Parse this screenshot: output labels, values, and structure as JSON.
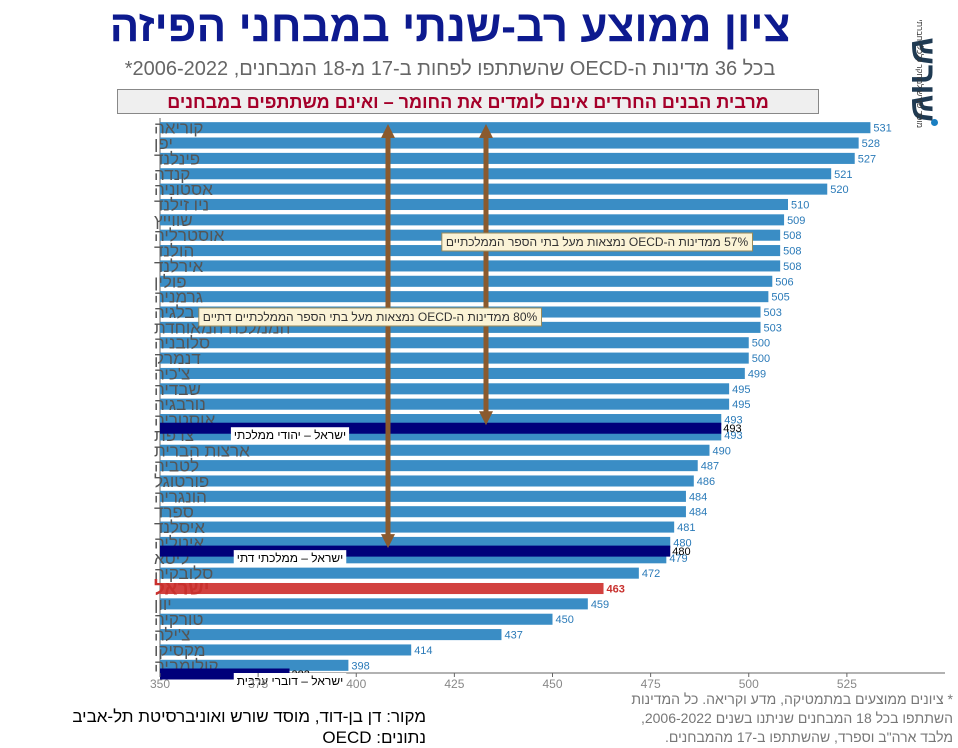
{
  "header": {
    "title": "ציון ממוצע רב-שנתי במבחני הפיזה",
    "subtitle": "בכל 36 מדינות ה-OECD שהשתתפו לפחות ב-17 מ-18 המבחנים, 2006-2022*",
    "banner": "מרבית הבנים החרדים אינם לומדים את החומר – ואינם משתתפים במבחנים"
  },
  "logo": {
    "name": "שורש",
    "tagline": "מוסד שורש למחקר כלכלי-חברתי",
    "dot_color": "#1a7fc1"
  },
  "footer": {
    "footnote": "* ציונים ממוצעים במתמטיקה, מדע וקריאה. כל המדינות השתתפו בכל 18 המבחנים שניתנו בשנים 2006-2022, מלבד ארה\"ב וספרד, שהשתתפו ב-17 מהמבחנים.",
    "source": "מקור: דן בן-דוד, מוסד שורש ואוניברסיטת תל-אביב",
    "data": "נתונים: OECD"
  },
  "colors": {
    "bar": "#3a8dc5",
    "israel_bar": "#d2413f",
    "israel_label": "#c8302d",
    "subgroup_bar": "#00007a",
    "arrow": "#8a5a2e",
    "value_text": "#2a7ab8",
    "axis_text": "#888888"
  },
  "chart_data": {
    "type": "bar",
    "orientation": "horizontal",
    "xlim": [
      350,
      550
    ],
    "xticks": [
      350,
      375,
      400,
      425,
      450,
      475,
      500,
      525
    ],
    "categories": [
      "קוריאה",
      "יפן",
      "פינלנד",
      "קנדה",
      "אסטוניה",
      "ניו זילנד",
      "שווייץ",
      "אוסטרליה",
      "הולנד",
      "אירלנד",
      "פולין",
      "גרמניה",
      "בלגיה",
      "הממלכה המאוחדת",
      "סלובניה",
      "דנמרק",
      "צ'כיה",
      "שבדיה",
      "נורבגיה",
      "אוסטריה",
      "צרפת",
      "ארצות הברית",
      "לטביה",
      "פורטוגל",
      "הונגריה",
      "ספרד",
      "איסלנד",
      "איטליה",
      "ליטא",
      "סלובקיה",
      "ישראל",
      "יוון",
      "טורקיה",
      "צ'ילה",
      "מקסיקו",
      "קולומביה"
    ],
    "values": [
      531,
      528,
      527,
      521,
      520,
      510,
      509,
      508,
      508,
      508,
      506,
      505,
      503,
      503,
      500,
      500,
      499,
      495,
      495,
      493,
      493,
      490,
      487,
      486,
      484,
      484,
      481,
      480,
      479,
      472,
      463,
      459,
      450,
      437,
      414,
      398
    ],
    "highlight": "ישראל",
    "subgroups": [
      {
        "name": "ישראל – יהודי ממלכתי",
        "value": 493,
        "after": "אוסטריה"
      },
      {
        "name": "ישראל – ממלכתי דתי",
        "value": 480,
        "after": "איטליה"
      },
      {
        "name": "ישראל – דוברי ערבית",
        "value": 383,
        "after": "קולומביה"
      }
    ],
    "annotations": [
      {
        "text": "57% ממדינות ה-OECD נמצאות מעל בתי הספר הממלכתיים",
        "from": "קוריאה",
        "to": "אוסטריה"
      },
      {
        "text": "80% ממדינות ה-OECD נמצאות מעל בתי הספר הממלכתיים דתיים",
        "from": "קוריאה",
        "to": "איטליה"
      }
    ]
  }
}
